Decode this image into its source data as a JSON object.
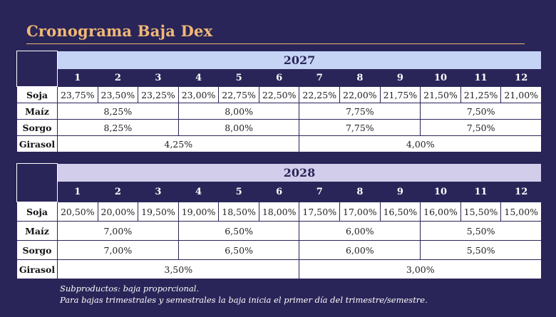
{
  "title": "Cronograma Baja Dex",
  "months": [
    "1",
    "2",
    "3",
    "4",
    "5",
    "6",
    "7",
    "8",
    "9",
    "10",
    "11",
    "12"
  ],
  "tables": [
    {
      "year": "2027",
      "crops": {
        "soja": {
          "label": "Soja",
          "values": [
            "23,75%",
            "23,50%",
            "23,25%",
            "23,00%",
            "22,75%",
            "22,50%",
            "22,25%",
            "22,00%",
            "21,75%",
            "21,50%",
            "21,25%",
            "21,00%"
          ]
        },
        "maiz": {
          "label": "Maíz",
          "values": [
            "8,25%",
            "8,00%",
            "7,75%",
            "7,50%"
          ]
        },
        "sorgo": {
          "label": "Sorgo",
          "values": [
            "8,25%",
            "8,00%",
            "7,75%",
            "7,50%"
          ]
        },
        "girasol": {
          "label": "Girasol",
          "values": [
            "4,25%",
            "4,00%"
          ]
        }
      }
    },
    {
      "year": "2028",
      "crops": {
        "soja": {
          "label": "Soja",
          "values": [
            "20,50%",
            "20,00%",
            "19,50%",
            "19,00%",
            "18,50%",
            "18,00%",
            "17,50%",
            "17,00%",
            "16,50%",
            "16,00%",
            "15,50%",
            "15,00%"
          ]
        },
        "maiz": {
          "label": "Maíz",
          "values": [
            "7,00%",
            "6,50%",
            "6,00%",
            "5,50%"
          ]
        },
        "sorgo": {
          "label": "Sorgo",
          "values": [
            "7,00%",
            "6,50%",
            "6,00%",
            "5,50%"
          ]
        },
        "girasol": {
          "label": "Girasol",
          "values": [
            "3,50%",
            "3,00%"
          ]
        }
      }
    }
  ],
  "notes": [
    "Subproductos: baja proporcional.",
    "Para bajas trimestrales y semestrales la baja inicia el primer día del trimestre/semestre."
  ]
}
